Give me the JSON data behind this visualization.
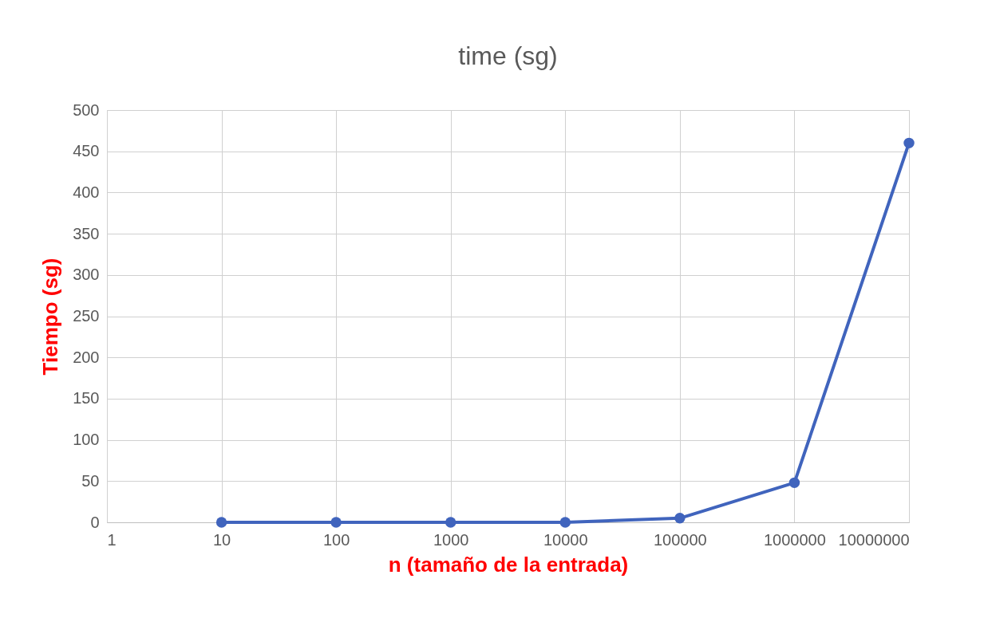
{
  "chart_data": {
    "type": "line",
    "title": "time (sg)",
    "xlabel": "n (tamaño de la entrada)",
    "ylabel": "Tiempo (sg)",
    "x": [
      10,
      100,
      1000,
      10000,
      100000,
      1000000,
      10000000
    ],
    "series": [
      {
        "color": "#4064bd",
        "values": [
          0,
          0,
          0,
          0,
          5,
          48,
          460
        ]
      }
    ],
    "log": "x",
    "xlim": [
      1,
      10000000
    ],
    "xticks": [
      1,
      10,
      100,
      1000,
      10000,
      100000,
      1000000,
      10000000
    ],
    "ylim": [
      0,
      500
    ],
    "yticks": [
      0,
      50,
      100,
      150,
      200,
      250,
      300,
      350,
      400,
      450,
      500
    ],
    "grid": true,
    "marker": "circle",
    "line_style": "solid"
  }
}
